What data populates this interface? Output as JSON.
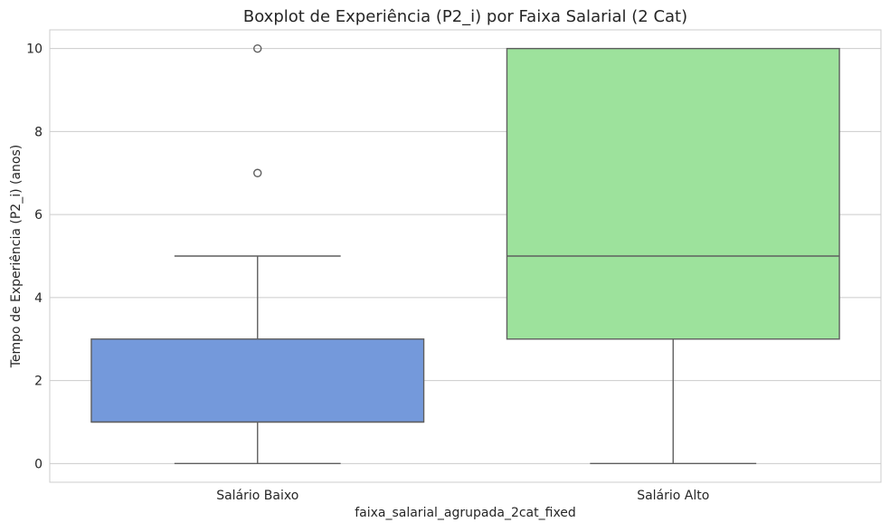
{
  "chart_data": {
    "type": "boxplot",
    "title": "Boxplot de Experiência (P2_i) por Faixa Salarial (2 Cat)",
    "xlabel": "faixa_salarial_agrupada_2cat_fixed",
    "ylabel": "Tempo de Experiência (P2_i) (anos)",
    "ylim": [
      -0.45,
      10.45
    ],
    "yticks": [
      0,
      2,
      4,
      6,
      8,
      10
    ],
    "grid": "horizontal",
    "categories": [
      "Salário Baixo",
      "Salário Alto"
    ],
    "boxes": [
      {
        "category": "Salário Baixo",
        "whisker_low": 0,
        "q1": 1,
        "median": 1,
        "q3": 3,
        "whisker_high": 5,
        "outliers": [
          7,
          10
        ],
        "color": "#7499db"
      },
      {
        "category": "Salário Alto",
        "whisker_low": 0,
        "q1": 3,
        "median": 5,
        "q3": 10,
        "whisker_high": 10,
        "outliers": [],
        "color": "#9de29c"
      }
    ]
  },
  "colors": {
    "box_line": "#5f5f5f",
    "grid": "#cccccc",
    "frame": "#cccccc",
    "text": "#262626"
  }
}
